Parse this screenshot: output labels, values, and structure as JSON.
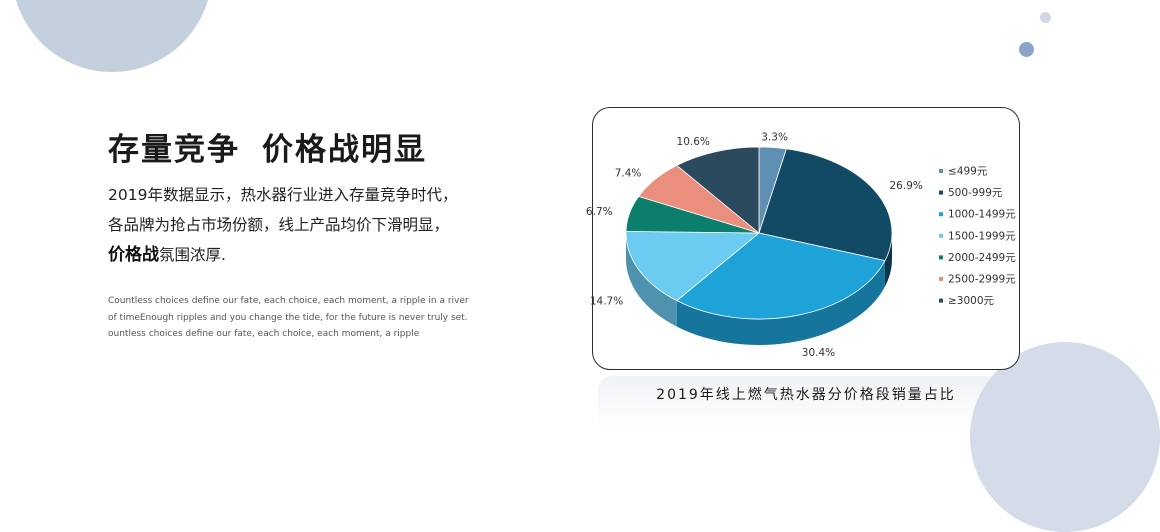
{
  "headline": {
    "part1": "存量竞争",
    "part2": "价格战明显"
  },
  "description": {
    "line1": "2019年数据显示，热水器行业进入存量竞争时代，",
    "line2": "各品牌为抢占市场份额，线上产品均价下滑明显，",
    "line3_bold": "价格战",
    "line3_rest": "氛围浓厚."
  },
  "english": {
    "line1": "Countless choices define our fate, each choice, each moment, a ripple in a river",
    "line2": "of timeEnough ripples and you change the tide, for the future is never truly set.",
    "line3": "ountless choices define our fate, each choice, each moment, a ripple"
  },
  "chart_data": {
    "type": "pie",
    "style": "3d",
    "title": "2019年线上燃气热水器分价格段销量占比",
    "legend_position": "right",
    "categories": [
      "≤499元",
      "500-999元",
      "1000-1499元",
      "1500-1999元",
      "2000-2499元",
      "2500-2999元",
      "≥3000元"
    ],
    "values": [
      3.3,
      26.9,
      30.4,
      14.7,
      6.7,
      7.4,
      10.6
    ],
    "value_labels": [
      "3.3%",
      "26.9%",
      "30.4%",
      "14.7%",
      "6.7%",
      "7.4%",
      "10.6%"
    ],
    "colors": [
      "#5f90b4",
      "#124a66",
      "#1ea3d8",
      "#6ccbf1",
      "#0c7f6c",
      "#ea8f7d",
      "#2c4a5e"
    ]
  }
}
